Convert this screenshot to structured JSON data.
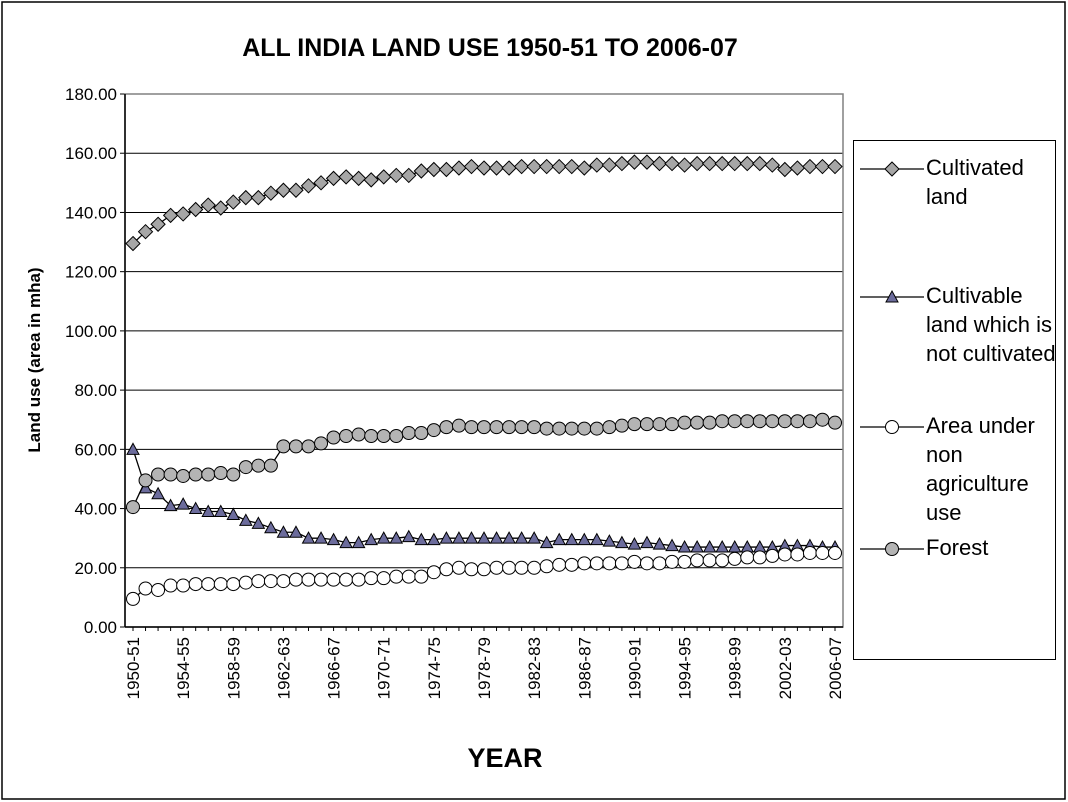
{
  "chart_data": {
    "type": "line",
    "title": "ALL INDIA LAND USE 1950-51 TO 2006-07",
    "y_label": "Land use (area in mha)",
    "x_label": "YEAR",
    "categories": [
      "1950-51",
      null,
      null,
      null,
      "1954-55",
      null,
      null,
      null,
      "1958-59",
      null,
      null,
      null,
      "1962-63",
      null,
      null,
      null,
      "1966-67",
      null,
      null,
      null,
      "1970-71",
      null,
      null,
      null,
      "1974-75",
      null,
      null,
      null,
      "1978-79",
      null,
      null,
      null,
      "1982-83",
      null,
      null,
      null,
      "1986-87",
      null,
      null,
      null,
      "1990-91",
      null,
      null,
      null,
      "1994-95",
      null,
      null,
      null,
      "1998-99",
      null,
      null,
      null,
      "2002-03",
      null,
      null,
      null,
      "2006-07"
    ],
    "ylim": [
      0,
      180
    ],
    "yticks": [
      {
        "value": 0,
        "label": "0.00"
      },
      {
        "value": 20,
        "label": "20.00"
      },
      {
        "value": 40,
        "label": "40.00"
      },
      {
        "value": 60,
        "label": "60.00"
      },
      {
        "value": 80,
        "label": "80.00"
      },
      {
        "value": 100,
        "label": "100.00"
      },
      {
        "value": 120,
        "label": "120.00"
      },
      {
        "value": 140,
        "label": "140.00"
      },
      {
        "value": 160,
        "label": "160.00"
      },
      {
        "value": 180,
        "label": "180.00"
      }
    ],
    "grid": true,
    "legend": "right",
    "series": [
      {
        "name": "Cultivated land",
        "color": "#a6a6a6",
        "marker": "diamond",
        "values": [
          129.5,
          133.5,
          136,
          139,
          139.5,
          141,
          142.5,
          141.5,
          143.5,
          145,
          145,
          146.5,
          147.5,
          147.5,
          149,
          150,
          151.5,
          152,
          151.5,
          151,
          152,
          152.5,
          152.5,
          154,
          154.5,
          154.5,
          155,
          155.5,
          155,
          155,
          155,
          155.5,
          155.5,
          155.5,
          155.5,
          155.5,
          155,
          156,
          156,
          156.5,
          157,
          157,
          156.5,
          156.5,
          156,
          156.5,
          156.5,
          156.5,
          156.5,
          156.5,
          156.5,
          156,
          154.5,
          155,
          155.5,
          155.5,
          155.5
        ]
      },
      {
        "name": "Cultivable land which is not cultivated",
        "color": "#6c6c9c",
        "marker": "triangle",
        "values": [
          60,
          47,
          45,
          41,
          41.5,
          40,
          39,
          39,
          38,
          36,
          35,
          33.5,
          32,
          32,
          30,
          30,
          29.5,
          28.5,
          28.5,
          29.5,
          30,
          30,
          30.5,
          29.5,
          29.5,
          30,
          30,
          30,
          30,
          30,
          30,
          30,
          30,
          28.5,
          29.5,
          29.5,
          29.5,
          29.5,
          29,
          28.5,
          28,
          28.5,
          28,
          27.5,
          27,
          27,
          27,
          27,
          27,
          27,
          27,
          27,
          27.5,
          27.5,
          27.5,
          27,
          27
        ]
      },
      {
        "name": "Area under non agriculture use",
        "color": "#ffffff",
        "marker": "circle",
        "values": [
          9.5,
          13,
          12.5,
          14,
          14,
          14.5,
          14.5,
          14.5,
          14.5,
          15,
          15.5,
          15.5,
          15.5,
          16,
          16,
          16,
          16,
          16,
          16,
          16.5,
          16.5,
          17,
          17,
          17,
          18.5,
          19.5,
          20,
          19.5,
          19.5,
          20,
          20,
          20,
          20,
          20.5,
          21,
          21,
          21.5,
          21.5,
          21.5,
          21.5,
          22,
          21.5,
          21.5,
          22,
          22,
          22.5,
          22.5,
          22.5,
          23,
          23.5,
          23.5,
          24,
          24.5,
          24.5,
          25,
          25,
          25
        ]
      },
      {
        "name": "Forest",
        "color": "#b4b4b4",
        "marker": "circle",
        "values": [
          40.5,
          49.5,
          51.5,
          51.5,
          51,
          51.5,
          51.5,
          52,
          51.5,
          54,
          54.5,
          54.5,
          61,
          61,
          61,
          62,
          64,
          64.5,
          65,
          64.5,
          64.5,
          64.5,
          65.5,
          65.5,
          66.5,
          67.5,
          68,
          67.5,
          67.5,
          67.5,
          67.5,
          67.5,
          67.5,
          67,
          67,
          67,
          67,
          67,
          67.5,
          68,
          68.5,
          68.5,
          68.5,
          68.5,
          69,
          69,
          69,
          69.5,
          69.5,
          69.5,
          69.5,
          69.5,
          69.5,
          69.5,
          69.5,
          70,
          69
        ]
      }
    ]
  }
}
